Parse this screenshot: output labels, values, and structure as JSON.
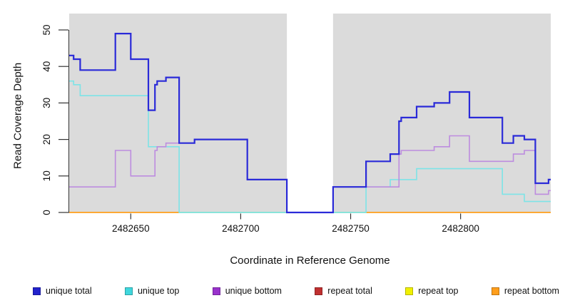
{
  "figure": {
    "background": "#ffffff",
    "panel_color": "#DBDBDB",
    "axis_color": "#333333",
    "text_color": "#111111"
  },
  "chart_data": {
    "type": "line",
    "style": "step",
    "title": "",
    "xlabel": "Coordinate in Reference Genome",
    "ylabel": "Read Coverage Depth",
    "xlim": [
      2482622,
      2482841
    ],
    "ylim": [
      0,
      54
    ],
    "x_ticks": [
      2482650,
      2482700,
      2482750,
      2482800
    ],
    "y_ticks": [
      0,
      10,
      20,
      30,
      40,
      50
    ],
    "grid": false,
    "legend_position": "bottom",
    "coverage_gap": {
      "from": 2482721,
      "to": 2482742
    },
    "series": [
      {
        "name": "unique total",
        "color": "#2A2AD8",
        "legend_color": "#2222CC",
        "width": 2.2,
        "points": [
          [
            2482622,
            43
          ],
          [
            2482624,
            42
          ],
          [
            2482627,
            39
          ],
          [
            2482643,
            49
          ],
          [
            2482650,
            42
          ],
          [
            2482658,
            28
          ],
          [
            2482661,
            35
          ],
          [
            2482662,
            36
          ],
          [
            2482666,
            37
          ],
          [
            2482672,
            19
          ],
          [
            2482679,
            20
          ],
          [
            2482703,
            9
          ],
          [
            2482721,
            0
          ],
          [
            2482742,
            7
          ],
          [
            2482757,
            14
          ],
          [
            2482768,
            16
          ],
          [
            2482772,
            25
          ],
          [
            2482773,
            26
          ],
          [
            2482780,
            29
          ],
          [
            2482788,
            30
          ],
          [
            2482795,
            33
          ],
          [
            2482804,
            26
          ],
          [
            2482819,
            19
          ],
          [
            2482824,
            21
          ],
          [
            2482829,
            20
          ],
          [
            2482834,
            8
          ],
          [
            2482840,
            9
          ],
          [
            2482841,
            9
          ]
        ]
      },
      {
        "name": "unique top",
        "color": "#7DE4E7",
        "legend_color": "#3FD7DD",
        "width": 1.6,
        "points": [
          [
            2482622,
            36
          ],
          [
            2482624,
            35
          ],
          [
            2482627,
            32
          ],
          [
            2482658,
            18
          ],
          [
            2482672,
            0
          ],
          [
            2482757,
            7
          ],
          [
            2482768,
            9
          ],
          [
            2482780,
            12
          ],
          [
            2482819,
            5
          ],
          [
            2482829,
            3
          ],
          [
            2482841,
            3
          ]
        ]
      },
      {
        "name": "unique bottom",
        "color": "#BD8CDF",
        "legend_color": "#9932CC",
        "width": 1.6,
        "points": [
          [
            2482622,
            7
          ],
          [
            2482643,
            17
          ],
          [
            2482650,
            10
          ],
          [
            2482661,
            17
          ],
          [
            2482662,
            18
          ],
          [
            2482666,
            19
          ],
          [
            2482679,
            20
          ],
          [
            2482703,
            9
          ],
          [
            2482721,
            0
          ],
          [
            2482742,
            7
          ],
          [
            2482772,
            16
          ],
          [
            2482773,
            17
          ],
          [
            2482788,
            18
          ],
          [
            2482795,
            21
          ],
          [
            2482804,
            14
          ],
          [
            2482824,
            16
          ],
          [
            2482829,
            17
          ],
          [
            2482834,
            5
          ],
          [
            2482840,
            6
          ],
          [
            2482841,
            6
          ]
        ]
      },
      {
        "name": "repeat total",
        "color": "#C03030",
        "legend_color": "#C03030",
        "width": 1.6,
        "drawn_as": "zero_segments",
        "points": [
          [
            2482622,
            0
          ],
          [
            2482841,
            0
          ]
        ]
      },
      {
        "name": "repeat top",
        "color": "#F0F000",
        "legend_color": "#F0F000",
        "width": 1.6,
        "drawn_as": "zero_segments",
        "points": [
          [
            2482622,
            0
          ],
          [
            2482841,
            0
          ]
        ]
      },
      {
        "name": "repeat bottom",
        "color": "#FF9E1B",
        "legend_color": "#FF9E1B",
        "width": 1.8,
        "drawn_as": "zero_segments",
        "points": [
          [
            2482622,
            0
          ],
          [
            2482841,
            0
          ]
        ]
      }
    ],
    "zero_line_segments": [
      {
        "color": "#FF9E1B",
        "from": 2482622,
        "to": 2482672
      },
      {
        "color": "#9ADB9A",
        "from": 2482672,
        "to": 2482721
      },
      {
        "color": "#9ADB9A",
        "from": 2482742,
        "to": 2482757
      },
      {
        "color": "#FF9E1B",
        "from": 2482757,
        "to": 2482841
      }
    ]
  }
}
